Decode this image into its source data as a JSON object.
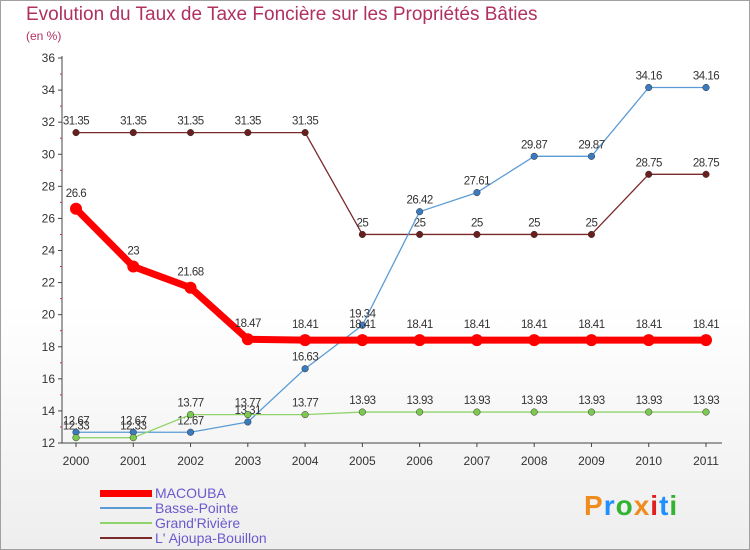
{
  "header": {
    "title": "Evolution du Taux de Taxe Foncière sur les Propriétés Bâties",
    "subtitle": "(en %)"
  },
  "logo": {
    "text": "Proxiti",
    "colors": [
      "#f08c1e",
      "#1e90ff",
      "#32b432",
      "#f08c1e",
      "#e0201e",
      "#1e90ff",
      "#32b432"
    ]
  },
  "chart_data": {
    "type": "line",
    "title": "Evolution du Taux de Taxe Foncière sur les Propriétés Bâties",
    "ylabel": "(en %)",
    "xlabel": "",
    "ylim": [
      12,
      36
    ],
    "yticks": [
      12,
      14,
      16,
      18,
      20,
      22,
      24,
      26,
      28,
      30,
      32,
      34,
      36
    ],
    "x": [
      "2000",
      "2001",
      "2002",
      "2003",
      "2004",
      "2005",
      "2006",
      "2007",
      "2008",
      "2009",
      "2010",
      "2011"
    ],
    "grid": false,
    "legend_position": "bottom-left",
    "series": [
      {
        "name": "L' Ajoupa-Bouillon",
        "color": "#7a2a2a",
        "marker": "#6b1e1e",
        "values": [
          31.35,
          31.35,
          31.35,
          31.35,
          31.35,
          25,
          25,
          25,
          25,
          25,
          28.75,
          28.75
        ],
        "labels": [
          "31.35",
          "31.35",
          "31.35",
          "31.35",
          "31.35",
          "25",
          "25",
          "25",
          "25",
          "25",
          "28.75",
          "28.75"
        ]
      },
      {
        "name": "Basse-Pointe",
        "color": "#5b9bd5",
        "marker": "#3a7bc0",
        "values": [
          12.67,
          12.67,
          12.67,
          13.31,
          16.63,
          19.34,
          26.42,
          27.61,
          29.87,
          29.87,
          34.16,
          34.16
        ],
        "labels": [
          "12.67",
          "12.67",
          "12.67",
          "13.31",
          "16.63",
          "19.34",
          "26.42",
          "27.61",
          "29.87",
          "29.87",
          "34.16",
          "34.16"
        ]
      },
      {
        "name": "Grand'Rivière",
        "color": "#8fd46a",
        "marker": "#7cc850",
        "values": [
          12.33,
          12.33,
          13.77,
          13.77,
          13.77,
          13.93,
          13.93,
          13.93,
          13.93,
          13.93,
          13.93,
          13.93
        ],
        "labels": [
          "12.33",
          "12.33",
          "13.77",
          "13.77",
          "13.77",
          "13.93",
          "13.93",
          "13.93",
          "13.93",
          "13.93",
          "13.93",
          "13.93"
        ]
      },
      {
        "name": "MACOUBA",
        "color": "#ff0000",
        "marker": "#ff0000",
        "values": [
          26.6,
          23,
          21.68,
          18.47,
          18.41,
          18.41,
          18.41,
          18.41,
          18.41,
          18.41,
          18.41,
          18.41
        ],
        "labels": [
          "26.6",
          "23",
          "21.68",
          "18.47",
          "18.41",
          "18.41",
          "18.41",
          "18.41",
          "18.41",
          "18.41",
          "18.41",
          "18.41"
        ]
      }
    ],
    "legend": [
      "MACOUBA",
      "Basse-Pointe",
      "Grand'Rivière",
      "L' Ajoupa-Bouillon"
    ]
  }
}
